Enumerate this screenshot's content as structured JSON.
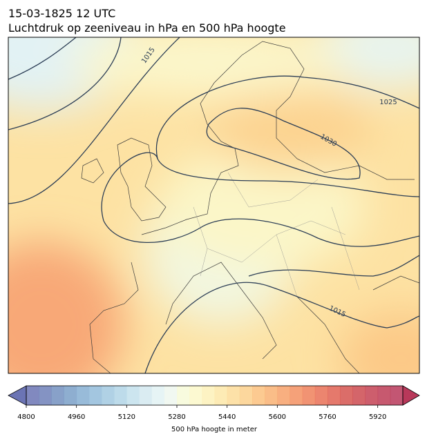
{
  "title_line1": "15-03-1825 12 UTC",
  "title_line2": "Luchtdruk op zeeniveau in hPa en 500 hPa hoogte",
  "map": {
    "contour_labels": [
      "1015",
      "1025",
      "1030",
      "1015"
    ]
  },
  "colorbar": {
    "label": "500 hPa hoogte in meter",
    "lim": [
      4800,
      6000
    ],
    "ticks": [
      4800,
      4960,
      5120,
      5280,
      5440,
      5600,
      5760,
      5920
    ],
    "colors": [
      "#6b74b4",
      "#6e80b8",
      "#7390c0",
      "#7aa0c8",
      "#86afd2",
      "#93bcda",
      "#a2c9e0",
      "#b2d5e6",
      "#c3e0ec",
      "#d3e9f0",
      "#e2f2f3",
      "#eef7ee",
      "#f7fad8",
      "#fbf8c9",
      "#fdf1b8",
      "#fde8a8",
      "#fddc99",
      "#fcd08c",
      "#fbc17e",
      "#f9b173",
      "#f7a16a",
      "#f39162",
      "#ef805b",
      "#e97056",
      "#e06252",
      "#d5544f",
      "#cc4a50",
      "#c44253",
      "#bd3c56",
      "#b8385a"
    ]
  }
}
